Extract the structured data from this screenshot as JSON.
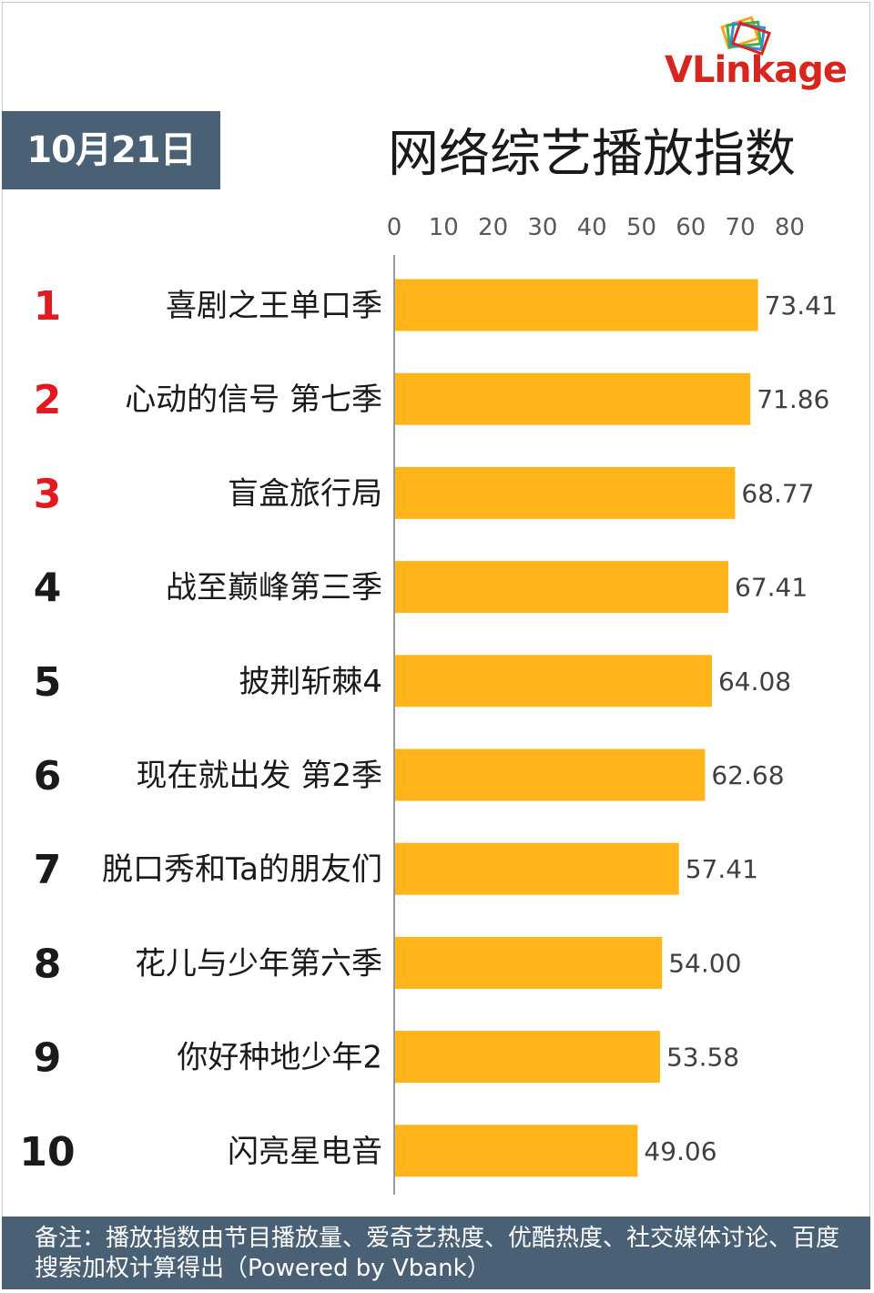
{
  "date_label": "10月21日",
  "brand": "VLinkage",
  "colors": {
    "bar": "#ffb41a",
    "rank_top": "#e2191f",
    "rank_other": "#1a1a1a",
    "header_bg": "#4a6074"
  },
  "footer_note": "备注：播放指数由节目播放量、爱奇艺热度、优酷热度、社交媒体讨论、百度搜索加权计算得出（Powered by Vbank）",
  "chart_data": {
    "type": "bar",
    "orientation": "horizontal",
    "title": "网络综艺播放指数",
    "xlim": [
      0,
      80
    ],
    "x_ticks": [
      "0",
      "10",
      "20",
      "30",
      "40",
      "50",
      "60",
      "70",
      "80"
    ],
    "axis_position": "top",
    "grid": false,
    "ranks": [
      "1",
      "2",
      "3",
      "4",
      "5",
      "6",
      "7",
      "8",
      "9",
      "10"
    ],
    "categories": [
      "喜剧之王单口季",
      "心动的信号 第七季",
      "盲盒旅行局",
      "战至巅峰第三季",
      "披荆斩棘4",
      "现在就出发 第2季",
      "脱口秀和Ta的朋友们",
      "花儿与少年第六季",
      "你好种地少年2",
      "闪亮星电音"
    ],
    "values": [
      73.41,
      71.86,
      68.77,
      67.41,
      64.08,
      62.68,
      57.41,
      54.0,
      53.58,
      49.06
    ],
    "value_labels": [
      "73.41",
      "71.86",
      "68.77",
      "67.41",
      "64.08",
      "62.68",
      "57.41",
      "54.00",
      "53.58",
      "49.06"
    ]
  }
}
